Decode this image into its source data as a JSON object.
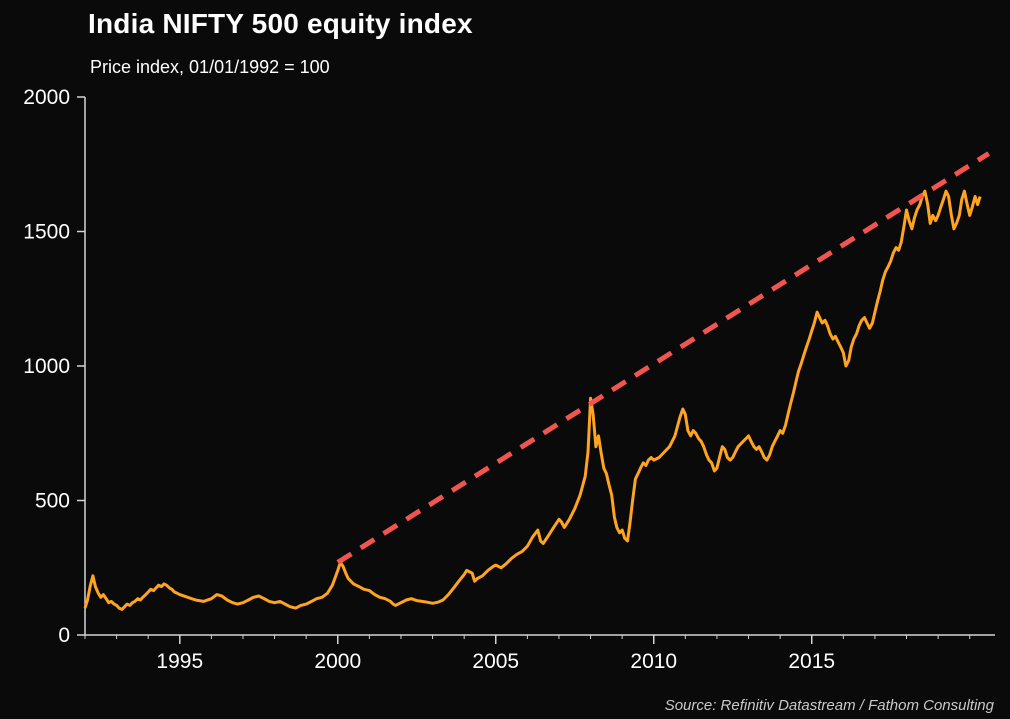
{
  "header": {
    "title": "India NIFTY 500 equity index",
    "subtitle": "Price index, 01/01/1992 = 100"
  },
  "footer": {
    "source": "Source: Refinitiv Datastream / Fathom Consulting"
  },
  "colors": {
    "background": "#0a0a0a",
    "series": "#FFA41E",
    "trend": "#F2554F",
    "axis": "#d4d4d4",
    "text": "#ffffff",
    "source_text": "#c9c9c9"
  },
  "chart_data": {
    "type": "line",
    "title": "India NIFTY 500 equity index",
    "subtitle": "Price index, 01/01/1992 = 100",
    "xlabel": "",
    "ylabel": "",
    "xlim": [
      1992,
      2020.8
    ],
    "ylim": [
      0,
      2000
    ],
    "x_ticks": [
      1995,
      2000,
      2005,
      2010,
      2015
    ],
    "y_ticks": [
      0,
      500,
      1000,
      1500,
      2000
    ],
    "grid": false,
    "legend_position": "none",
    "series": [
      {
        "name": "NIFTY 500 price index",
        "color": "#FFA41E",
        "style": "solid",
        "points": [
          [
            1992.0,
            100
          ],
          [
            1992.08,
            130
          ],
          [
            1992.17,
            185
          ],
          [
            1992.25,
            220
          ],
          [
            1992.33,
            180
          ],
          [
            1992.42,
            155
          ],
          [
            1992.5,
            140
          ],
          [
            1992.58,
            150
          ],
          [
            1992.67,
            135
          ],
          [
            1992.75,
            120
          ],
          [
            1992.83,
            125
          ],
          [
            1992.92,
            115
          ],
          [
            1993.0,
            110
          ],
          [
            1993.08,
            100
          ],
          [
            1993.17,
            95
          ],
          [
            1993.25,
            105
          ],
          [
            1993.33,
            115
          ],
          [
            1993.42,
            110
          ],
          [
            1993.5,
            120
          ],
          [
            1993.58,
            125
          ],
          [
            1993.67,
            135
          ],
          [
            1993.75,
            130
          ],
          [
            1993.83,
            140
          ],
          [
            1993.92,
            150
          ],
          [
            1994.0,
            160
          ],
          [
            1994.08,
            170
          ],
          [
            1994.17,
            165
          ],
          [
            1994.25,
            175
          ],
          [
            1994.33,
            185
          ],
          [
            1994.42,
            180
          ],
          [
            1994.5,
            190
          ],
          [
            1994.58,
            185
          ],
          [
            1994.67,
            175
          ],
          [
            1994.75,
            170
          ],
          [
            1994.83,
            160
          ],
          [
            1994.92,
            155
          ],
          [
            1995.0,
            150
          ],
          [
            1995.25,
            140
          ],
          [
            1995.5,
            130
          ],
          [
            1995.75,
            125
          ],
          [
            1996.0,
            135
          ],
          [
            1996.17,
            150
          ],
          [
            1996.33,
            145
          ],
          [
            1996.5,
            130
          ],
          [
            1996.67,
            120
          ],
          [
            1996.83,
            115
          ],
          [
            1997.0,
            120
          ],
          [
            1997.17,
            130
          ],
          [
            1997.33,
            140
          ],
          [
            1997.5,
            145
          ],
          [
            1997.67,
            135
          ],
          [
            1997.83,
            125
          ],
          [
            1998.0,
            120
          ],
          [
            1998.17,
            125
          ],
          [
            1998.33,
            115
          ],
          [
            1998.5,
            105
          ],
          [
            1998.67,
            100
          ],
          [
            1998.83,
            110
          ],
          [
            1999.0,
            115
          ],
          [
            1999.17,
            125
          ],
          [
            1999.33,
            135
          ],
          [
            1999.5,
            140
          ],
          [
            1999.67,
            155
          ],
          [
            1999.83,
            185
          ],
          [
            2000.0,
            240
          ],
          [
            2000.08,
            270
          ],
          [
            2000.17,
            255
          ],
          [
            2000.25,
            230
          ],
          [
            2000.33,
            210
          ],
          [
            2000.5,
            190
          ],
          [
            2000.67,
            180
          ],
          [
            2000.83,
            170
          ],
          [
            2001.0,
            165
          ],
          [
            2001.17,
            150
          ],
          [
            2001.33,
            140
          ],
          [
            2001.5,
            135
          ],
          [
            2001.67,
            125
          ],
          [
            2001.75,
            115
          ],
          [
            2001.83,
            110
          ],
          [
            2002.0,
            120
          ],
          [
            2002.17,
            130
          ],
          [
            2002.33,
            135
          ],
          [
            2002.5,
            128
          ],
          [
            2002.67,
            125
          ],
          [
            2002.83,
            122
          ],
          [
            2003.0,
            118
          ],
          [
            2003.17,
            122
          ],
          [
            2003.33,
            130
          ],
          [
            2003.5,
            150
          ],
          [
            2003.67,
            175
          ],
          [
            2003.83,
            200
          ],
          [
            2004.0,
            225
          ],
          [
            2004.08,
            240
          ],
          [
            2004.25,
            230
          ],
          [
            2004.33,
            200
          ],
          [
            2004.42,
            210
          ],
          [
            2004.58,
            220
          ],
          [
            2004.75,
            240
          ],
          [
            2004.92,
            255
          ],
          [
            2005.0,
            260
          ],
          [
            2005.17,
            250
          ],
          [
            2005.33,
            265
          ],
          [
            2005.5,
            285
          ],
          [
            2005.67,
            300
          ],
          [
            2005.83,
            310
          ],
          [
            2006.0,
            330
          ],
          [
            2006.17,
            365
          ],
          [
            2006.33,
            390
          ],
          [
            2006.42,
            350
          ],
          [
            2006.5,
            340
          ],
          [
            2006.67,
            370
          ],
          [
            2006.83,
            400
          ],
          [
            2007.0,
            430
          ],
          [
            2007.08,
            420
          ],
          [
            2007.17,
            400
          ],
          [
            2007.33,
            430
          ],
          [
            2007.5,
            470
          ],
          [
            2007.67,
            520
          ],
          [
            2007.83,
            590
          ],
          [
            2007.92,
            680
          ],
          [
            2008.0,
            880
          ],
          [
            2008.08,
            820
          ],
          [
            2008.17,
            700
          ],
          [
            2008.25,
            740
          ],
          [
            2008.33,
            680
          ],
          [
            2008.42,
            620
          ],
          [
            2008.5,
            600
          ],
          [
            2008.58,
            560
          ],
          [
            2008.67,
            520
          ],
          [
            2008.75,
            440
          ],
          [
            2008.83,
            400
          ],
          [
            2008.92,
            380
          ],
          [
            2009.0,
            390
          ],
          [
            2009.08,
            360
          ],
          [
            2009.17,
            350
          ],
          [
            2009.25,
            420
          ],
          [
            2009.33,
            500
          ],
          [
            2009.42,
            580
          ],
          [
            2009.5,
            600
          ],
          [
            2009.58,
            620
          ],
          [
            2009.67,
            640
          ],
          [
            2009.75,
            630
          ],
          [
            2009.83,
            650
          ],
          [
            2009.92,
            660
          ],
          [
            2010.0,
            650
          ],
          [
            2010.17,
            660
          ],
          [
            2010.33,
            680
          ],
          [
            2010.5,
            700
          ],
          [
            2010.67,
            740
          ],
          [
            2010.83,
            810
          ],
          [
            2010.92,
            840
          ],
          [
            2011.0,
            820
          ],
          [
            2011.08,
            760
          ],
          [
            2011.17,
            740
          ],
          [
            2011.25,
            760
          ],
          [
            2011.33,
            750
          ],
          [
            2011.42,
            730
          ],
          [
            2011.5,
            720
          ],
          [
            2011.58,
            700
          ],
          [
            2011.67,
            670
          ],
          [
            2011.75,
            650
          ],
          [
            2011.83,
            640
          ],
          [
            2011.92,
            610
          ],
          [
            2012.0,
            620
          ],
          [
            2012.08,
            660
          ],
          [
            2012.17,
            700
          ],
          [
            2012.25,
            690
          ],
          [
            2012.33,
            660
          ],
          [
            2012.42,
            650
          ],
          [
            2012.5,
            660
          ],
          [
            2012.58,
            680
          ],
          [
            2012.67,
            700
          ],
          [
            2012.75,
            710
          ],
          [
            2012.83,
            720
          ],
          [
            2012.92,
            730
          ],
          [
            2013.0,
            740
          ],
          [
            2013.08,
            720
          ],
          [
            2013.17,
            700
          ],
          [
            2013.25,
            690
          ],
          [
            2013.33,
            700
          ],
          [
            2013.42,
            680
          ],
          [
            2013.5,
            660
          ],
          [
            2013.58,
            650
          ],
          [
            2013.67,
            670
          ],
          [
            2013.75,
            700
          ],
          [
            2013.83,
            720
          ],
          [
            2013.92,
            740
          ],
          [
            2014.0,
            760
          ],
          [
            2014.08,
            750
          ],
          [
            2014.17,
            780
          ],
          [
            2014.25,
            820
          ],
          [
            2014.33,
            860
          ],
          [
            2014.42,
            900
          ],
          [
            2014.5,
            940
          ],
          [
            2014.58,
            980
          ],
          [
            2014.67,
            1010
          ],
          [
            2014.75,
            1040
          ],
          [
            2014.83,
            1070
          ],
          [
            2014.92,
            1100
          ],
          [
            2015.0,
            1130
          ],
          [
            2015.08,
            1160
          ],
          [
            2015.17,
            1200
          ],
          [
            2015.25,
            1180
          ],
          [
            2015.33,
            1160
          ],
          [
            2015.42,
            1170
          ],
          [
            2015.5,
            1150
          ],
          [
            2015.58,
            1120
          ],
          [
            2015.67,
            1100
          ],
          [
            2015.75,
            1110
          ],
          [
            2015.83,
            1090
          ],
          [
            2015.92,
            1070
          ],
          [
            2016.0,
            1050
          ],
          [
            2016.08,
            1000
          ],
          [
            2016.17,
            1020
          ],
          [
            2016.25,
            1070
          ],
          [
            2016.33,
            1100
          ],
          [
            2016.42,
            1120
          ],
          [
            2016.5,
            1150
          ],
          [
            2016.58,
            1170
          ],
          [
            2016.67,
            1180
          ],
          [
            2016.75,
            1160
          ],
          [
            2016.83,
            1140
          ],
          [
            2016.92,
            1160
          ],
          [
            2017.0,
            1200
          ],
          [
            2017.08,
            1240
          ],
          [
            2017.17,
            1280
          ],
          [
            2017.25,
            1320
          ],
          [
            2017.33,
            1350
          ],
          [
            2017.42,
            1370
          ],
          [
            2017.5,
            1390
          ],
          [
            2017.58,
            1420
          ],
          [
            2017.67,
            1440
          ],
          [
            2017.75,
            1430
          ],
          [
            2017.83,
            1460
          ],
          [
            2017.92,
            1520
          ],
          [
            2018.0,
            1580
          ],
          [
            2018.08,
            1540
          ],
          [
            2018.17,
            1510
          ],
          [
            2018.25,
            1550
          ],
          [
            2018.33,
            1580
          ],
          [
            2018.42,
            1600
          ],
          [
            2018.5,
            1630
          ],
          [
            2018.58,
            1650
          ],
          [
            2018.67,
            1600
          ],
          [
            2018.75,
            1530
          ],
          [
            2018.83,
            1560
          ],
          [
            2018.92,
            1540
          ],
          [
            2019.0,
            1560
          ],
          [
            2019.08,
            1590
          ],
          [
            2019.17,
            1620
          ],
          [
            2019.25,
            1650
          ],
          [
            2019.33,
            1630
          ],
          [
            2019.42,
            1560
          ],
          [
            2019.5,
            1510
          ],
          [
            2019.58,
            1530
          ],
          [
            2019.67,
            1560
          ],
          [
            2019.75,
            1620
          ],
          [
            2019.83,
            1650
          ],
          [
            2019.92,
            1600
          ],
          [
            2020.0,
            1560
          ],
          [
            2020.08,
            1590
          ],
          [
            2020.17,
            1630
          ],
          [
            2020.25,
            1600
          ],
          [
            2020.33,
            1630
          ]
        ]
      },
      {
        "name": "Pre-2008 trend extrapolation",
        "color": "#F2554F",
        "style": "dashed",
        "points": [
          [
            2000.0,
            270
          ],
          [
            2020.6,
            1790
          ]
        ]
      }
    ]
  }
}
